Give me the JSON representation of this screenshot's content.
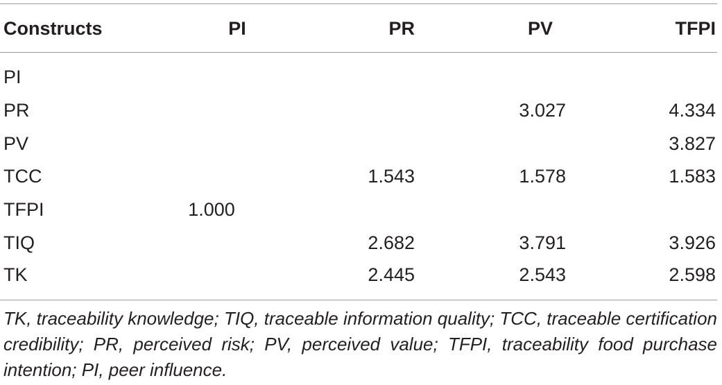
{
  "table": {
    "headers": [
      "Constructs",
      "PI",
      "PR",
      "PV",
      "TFPI"
    ],
    "rows": [
      [
        "PI",
        "",
        "",
        "",
        ""
      ],
      [
        "PR",
        "",
        "",
        "3.027",
        "4.334"
      ],
      [
        "PV",
        "",
        "",
        "",
        "3.827"
      ],
      [
        "TCC",
        "",
        "1.543",
        "1.578",
        "1.583"
      ],
      [
        "TFPI",
        "1.000",
        "",
        "",
        ""
      ],
      [
        "TIQ",
        "",
        "2.682",
        "3.791",
        "3.926"
      ],
      [
        "TK",
        "",
        "2.445",
        "2.543",
        "2.598"
      ]
    ]
  },
  "footnote": "TK, traceability knowledge; TIQ, traceable information quality; TCC, traceable certification credibility; PR, perceived risk; PV, perceived value; TFPI, traceability food purchase intention; PI, peer influence."
}
